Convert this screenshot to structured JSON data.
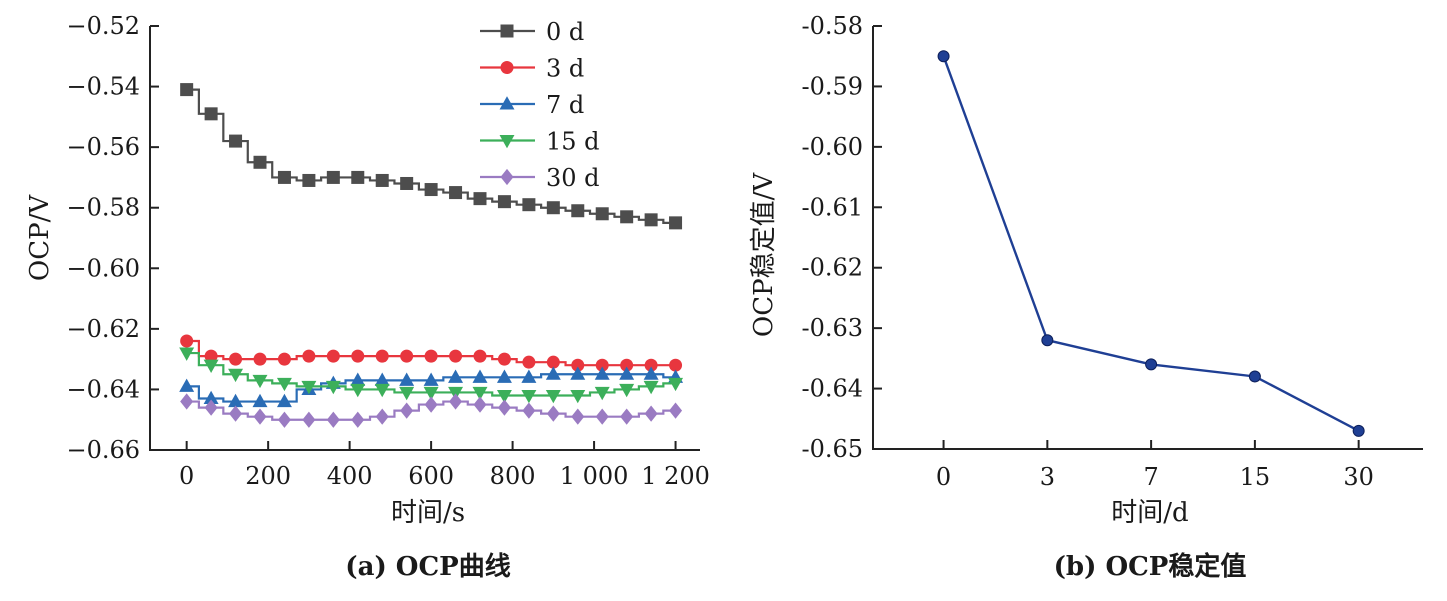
{
  "chart_data": [
    {
      "type": "line",
      "caption": "(a) OCP曲线",
      "xlabel": "时间/s",
      "ylabel": "OCP/V",
      "xlim": [
        -90,
        1260
      ],
      "ylim": [
        -0.66,
        -0.52
      ],
      "x_ticks": [
        0,
        200,
        400,
        600,
        800,
        1000,
        1200
      ],
      "x_tick_labels": [
        "0",
        "200",
        "400",
        "600",
        "800",
        "1 000",
        "1 200"
      ],
      "y_ticks": [
        -0.52,
        -0.54,
        -0.56,
        -0.58,
        -0.6,
        -0.62,
        -0.64,
        -0.66
      ],
      "y_tick_labels": [
        "−0.52",
        "−0.54",
        "−0.56",
        "−0.58",
        "−0.60",
        "−0.62",
        "−0.64",
        "−0.66"
      ],
      "legend_position": "top-right",
      "series": [
        {
          "name": "0 d",
          "marker": "square",
          "color": "#4d4d4d",
          "x": [
            0,
            60,
            120,
            180,
            240,
            300,
            360,
            420,
            480,
            540,
            600,
            660,
            720,
            780,
            840,
            900,
            960,
            1020,
            1080,
            1140,
            1200
          ],
          "values": [
            -0.541,
            -0.549,
            -0.558,
            -0.565,
            -0.57,
            -0.571,
            -0.57,
            -0.57,
            -0.571,
            -0.572,
            -0.574,
            -0.575,
            -0.577,
            -0.578,
            -0.579,
            -0.58,
            -0.581,
            -0.582,
            -0.583,
            -0.584,
            -0.585
          ]
        },
        {
          "name": "3 d",
          "marker": "circle",
          "color": "#e8363e",
          "x": [
            0,
            60,
            120,
            180,
            240,
            300,
            360,
            420,
            480,
            540,
            600,
            660,
            720,
            780,
            840,
            900,
            960,
            1020,
            1080,
            1140,
            1200
          ],
          "values": [
            -0.624,
            -0.629,
            -0.63,
            -0.63,
            -0.63,
            -0.629,
            -0.629,
            -0.629,
            -0.629,
            -0.629,
            -0.629,
            -0.629,
            -0.629,
            -0.63,
            -0.631,
            -0.631,
            -0.632,
            -0.632,
            -0.632,
            -0.632,
            -0.632
          ]
        },
        {
          "name": "7 d",
          "marker": "triangle-up",
          "color": "#2a6cb5",
          "x": [
            0,
            60,
            120,
            180,
            240,
            300,
            360,
            420,
            480,
            540,
            600,
            660,
            720,
            780,
            840,
            900,
            960,
            1020,
            1080,
            1140,
            1200
          ],
          "values": [
            -0.639,
            -0.643,
            -0.644,
            -0.644,
            -0.644,
            -0.64,
            -0.638,
            -0.637,
            -0.637,
            -0.637,
            -0.637,
            -0.636,
            -0.636,
            -0.636,
            -0.636,
            -0.635,
            -0.635,
            -0.635,
            -0.635,
            -0.635,
            -0.636
          ]
        },
        {
          "name": "15 d",
          "marker": "triangle-down",
          "color": "#3caf5a",
          "x": [
            0,
            60,
            120,
            180,
            240,
            300,
            360,
            420,
            480,
            540,
            600,
            660,
            720,
            780,
            840,
            900,
            960,
            1020,
            1080,
            1140,
            1200
          ],
          "values": [
            -0.628,
            -0.632,
            -0.635,
            -0.637,
            -0.638,
            -0.639,
            -0.639,
            -0.64,
            -0.64,
            -0.641,
            -0.641,
            -0.641,
            -0.641,
            -0.642,
            -0.642,
            -0.642,
            -0.642,
            -0.641,
            -0.64,
            -0.639,
            -0.638
          ]
        },
        {
          "name": "30 d",
          "marker": "diamond",
          "color": "#9a7bc2",
          "x": [
            0,
            60,
            120,
            180,
            240,
            300,
            360,
            420,
            480,
            540,
            600,
            660,
            720,
            780,
            840,
            900,
            960,
            1020,
            1080,
            1140,
            1200
          ],
          "values": [
            -0.644,
            -0.646,
            -0.648,
            -0.649,
            -0.65,
            -0.65,
            -0.65,
            -0.65,
            -0.649,
            -0.647,
            -0.645,
            -0.644,
            -0.645,
            -0.646,
            -0.647,
            -0.648,
            -0.649,
            -0.649,
            -0.649,
            -0.648,
            -0.647
          ]
        }
      ]
    },
    {
      "type": "line",
      "caption": "(b) OCP稳定值",
      "xlabel": "时间/d",
      "ylabel": "OCP稳定值/V",
      "ylim": [
        -0.65,
        -0.58
      ],
      "categories": [
        "0",
        "3",
        "7",
        "15",
        "30"
      ],
      "y_ticks": [
        -0.58,
        -0.59,
        -0.6,
        -0.61,
        -0.62,
        -0.63,
        -0.64,
        -0.65
      ],
      "y_tick_labels": [
        "-0.58",
        "-0.59",
        "-0.60",
        "-0.61",
        "-0.62",
        "-0.63",
        "-0.64",
        "-0.65"
      ],
      "series": [
        {
          "marker": "circle",
          "color": "#1f3f94",
          "values": [
            -0.585,
            -0.632,
            -0.636,
            -0.638,
            -0.647
          ]
        }
      ]
    }
  ]
}
